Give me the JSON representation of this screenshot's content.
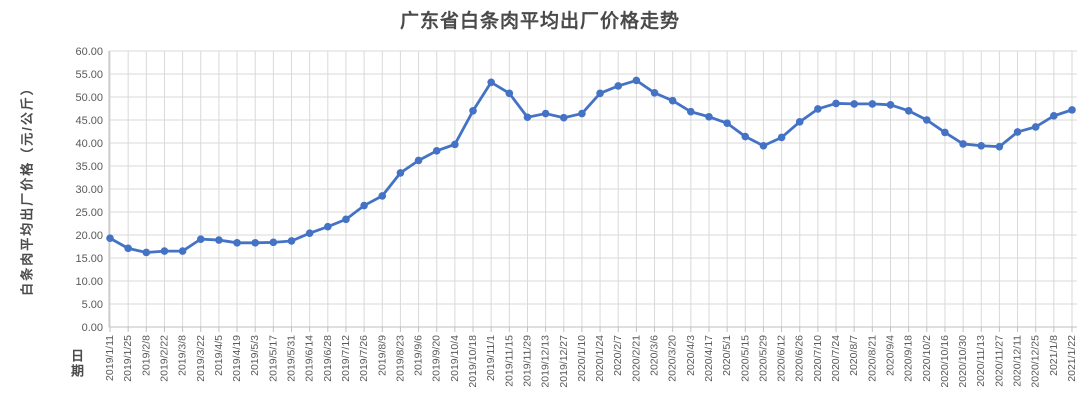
{
  "chart_data": {
    "type": "line",
    "title": "广东省白条肉平均出厂价格走势",
    "ylabel": "白条肉平均出厂价格（元/公斤）",
    "xlabel": "日期",
    "ylim": [
      0,
      60
    ],
    "ytick_step": 5,
    "y_tick_labels": [
      "0.00",
      "5.00",
      "10.00",
      "15.00",
      "20.00",
      "25.00",
      "30.00",
      "35.00",
      "40.00",
      "45.00",
      "50.00",
      "55.00",
      "60.00"
    ],
    "grid": true,
    "legend_position": "none",
    "categories": [
      "2019/1/11",
      "2019/1/25",
      "2019/2/8",
      "2019/2/22",
      "2019/3/8",
      "2019/3/22",
      "2019/4/5",
      "2019/4/19",
      "2019/5/3",
      "2019/5/17",
      "2019/5/31",
      "2019/6/14",
      "2019/6/28",
      "2019/7/12",
      "2019/7/26",
      "2019/8/9",
      "2019/8/23",
      "2019/9/6",
      "2019/9/20",
      "2019/10/4",
      "2019/10/18",
      "2019/11/1",
      "2019/11/15",
      "2019/11/29",
      "2019/12/13",
      "2019/12/27",
      "2020/1/10",
      "2020/1/24",
      "2020/2/7",
      "2020/2/21",
      "2020/3/6",
      "2020/3/20",
      "2020/4/3",
      "2020/4/17",
      "2020/5/1",
      "2020/5/15",
      "2020/5/29",
      "2020/6/12",
      "2020/6/26",
      "2020/7/10",
      "2020/7/24",
      "2020/8/7",
      "2020/8/21",
      "2020/9/4",
      "2020/9/18",
      "2020/10/2",
      "2020/10/16",
      "2020/10/30",
      "2020/11/13",
      "2020/11/27",
      "2020/12/11",
      "2020/12/25",
      "2021/1/8",
      "2021/1/22"
    ],
    "values": [
      19.3,
      17.1,
      16.2,
      16.5,
      16.5,
      19.1,
      18.9,
      18.3,
      18.3,
      18.4,
      18.7,
      20.4,
      21.8,
      23.4,
      26.4,
      28.5,
      33.5,
      36.2,
      38.3,
      39.7,
      47.0,
      53.2,
      50.8,
      45.6,
      46.4,
      45.5,
      46.4,
      50.8,
      52.4,
      53.6,
      50.9,
      49.2,
      46.8,
      45.7,
      44.3,
      41.4,
      39.4,
      41.2,
      44.6,
      47.4,
      48.6,
      48.5,
      48.5,
      48.3,
      47.0,
      45.0,
      42.3,
      39.8,
      39.4,
      39.2,
      42.4,
      43.5,
      45.9,
      47.2
    ],
    "colors": {
      "line": "#4472C4",
      "marker": "#4472C4",
      "gridline": "#d9d9d9",
      "axis": "#bfbfbf",
      "tick_label": "#595959",
      "title_text": "#4a4a4a"
    }
  }
}
